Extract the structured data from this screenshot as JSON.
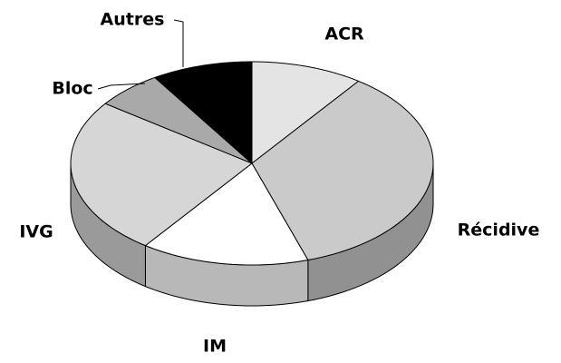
{
  "chart_data": {
    "type": "pie3d",
    "categories": [
      "ACR",
      "Récidive",
      "IM",
      "IVG",
      "Bloc",
      "Autres"
    ],
    "values": [
      10,
      35,
      15,
      25,
      6,
      9
    ],
    "colors": [
      "#e4e4e4",
      "#cacaca",
      "#ffffff",
      "#d6d6d6",
      "#a9a9a9",
      "#000000"
    ]
  }
}
